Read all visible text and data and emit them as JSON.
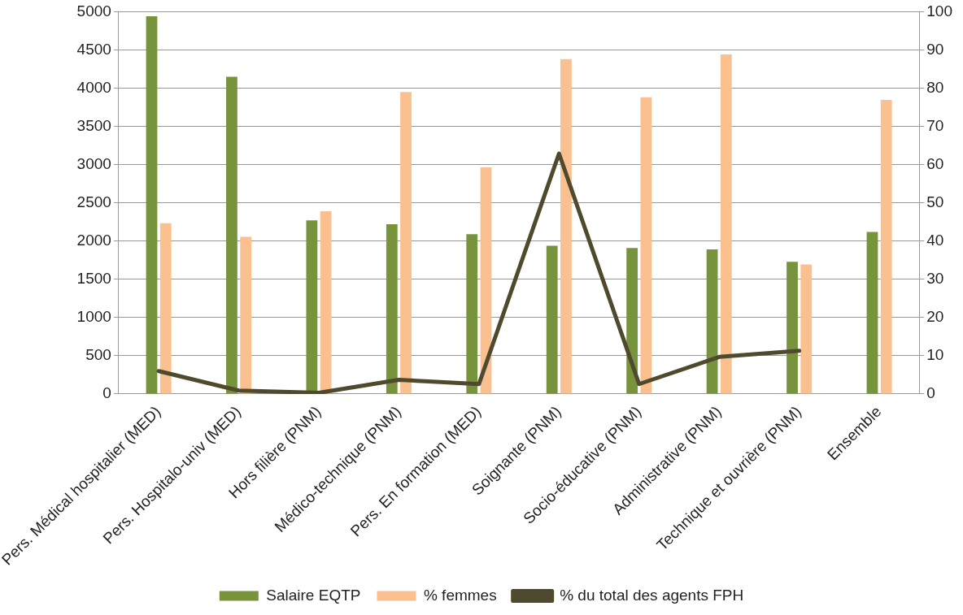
{
  "chart_data": {
    "type": "bar",
    "categories": [
      "Pers. Médical hospitalier (MED)",
      "Pers. Hospitalo-univ (MED)",
      "Hors filière (PNM)",
      "Médico-technique (PNM)",
      "Pers. En formation (MED)",
      "Soignante (PNM)",
      "Socio-éducative (PNM)",
      "Administrative (PNM)",
      "Technique et ouvrière (PNM)",
      "Ensemble"
    ],
    "series": [
      {
        "name": "Salaire EQTP",
        "color": "#77933c",
        "values": [
          4940,
          4150,
          2270,
          2220,
          2090,
          1940,
          1910,
          1890,
          1730,
          2120
        ]
      },
      {
        "name": "% femmes",
        "color": "#fac090",
        "axis": "y2",
        "values": [
          44.7,
          41.1,
          47.8,
          79.0,
          59.3,
          87.6,
          77.6,
          88.8,
          33.9,
          76.9
        ]
      },
      {
        "name": "% du total des agents FPH",
        "type": "line",
        "color": "#4f4a2e",
        "axis": "y2",
        "values": [
          6.0,
          0.9,
          0.3,
          3.7,
          2.6,
          62.9,
          2.6,
          9.7,
          11.3,
          null
        ]
      }
    ],
    "ylim": [
      0,
      5000
    ],
    "yticks": [
      0,
      500,
      1000,
      1500,
      2000,
      2500,
      3000,
      3500,
      4000,
      4500,
      5000
    ],
    "y2lim": [
      0,
      100
    ],
    "y2ticks": [
      0,
      10,
      20,
      30,
      40,
      50,
      60,
      70,
      80,
      90,
      100
    ],
    "grid": "y",
    "legend": "bottom",
    "marker": "none"
  }
}
